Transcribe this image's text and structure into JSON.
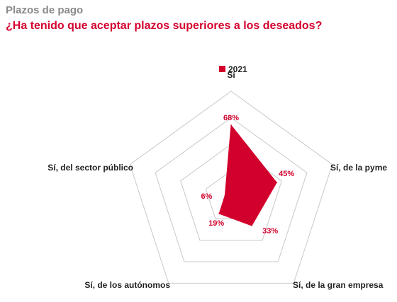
{
  "header": {
    "kicker": "Plazos de pago",
    "title": "¿Ha tenido que aceptar plazos superiores a los deseados?"
  },
  "colors": {
    "accent": "#d2002d",
    "kicker": "#8a8a8a",
    "grid": "#c8c8c8"
  },
  "chart_data": {
    "type": "radar",
    "title": "¿Ha tenido que aceptar plazos superiores a los deseados?",
    "categories": [
      "Sí",
      "Sí, de la pyme",
      "Sí, de la gran empresa",
      "Sí, de los autónomos",
      "Sí, del sector público"
    ],
    "series": [
      {
        "name": "2021",
        "values": [
          68,
          45,
          33,
          19,
          6
        ],
        "labels": [
          "68%",
          "45%",
          "33%",
          "19%",
          "6%"
        ]
      }
    ],
    "range": [
      0,
      100
    ],
    "grid_rings": 4,
    "legend_position": "top-center"
  }
}
